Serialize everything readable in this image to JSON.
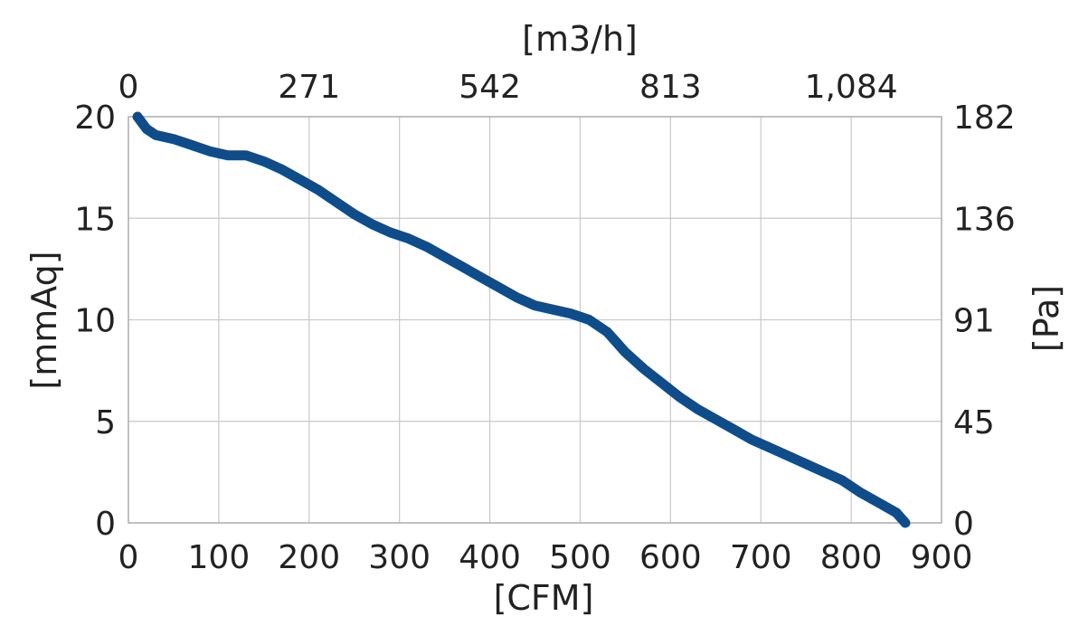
{
  "chart_data": {
    "type": "line",
    "xlabel": "[CFM]",
    "x2label": "[m3/h]",
    "ylabel": "[mmAq]",
    "y2label": "[Pa]",
    "xlim": [
      0,
      900
    ],
    "ylim": [
      0,
      20
    ],
    "grid": true,
    "line_color": "#0f4c8a",
    "x_ticks": [
      "0",
      "100",
      "200",
      "300",
      "400",
      "500",
      "600",
      "700",
      "800",
      "900"
    ],
    "y_ticks": [
      "0",
      "5",
      "10",
      "15",
      "20"
    ],
    "x2_ticks": [
      {
        "label": "0",
        "at_cfm": 0
      },
      {
        "label": "271",
        "at_cfm": 200
      },
      {
        "label": "542",
        "at_cfm": 400
      },
      {
        "label": "813",
        "at_cfm": 600
      },
      {
        "label": "1,084",
        "at_cfm": 800
      }
    ],
    "y2_ticks": [
      {
        "label": "0",
        "at_mmaq": 0
      },
      {
        "label": "45",
        "at_mmaq": 5
      },
      {
        "label": "91",
        "at_mmaq": 10
      },
      {
        "label": "136",
        "at_mmaq": 15
      },
      {
        "label": "182",
        "at_mmaq": 20
      }
    ],
    "series": [
      {
        "x": [
          10,
          20,
          30,
          50,
          70,
          90,
          110,
          130,
          150,
          170,
          190,
          210,
          230,
          250,
          270,
          290,
          310,
          330,
          350,
          370,
          390,
          410,
          430,
          450,
          470,
          490,
          510,
          530,
          540,
          550,
          570,
          590,
          610,
          630,
          650,
          670,
          690,
          710,
          730,
          750,
          770,
          790,
          810,
          830,
          850,
          860
        ],
        "y": [
          20,
          19.4,
          19.1,
          18.9,
          18.6,
          18.3,
          18.1,
          18.1,
          17.8,
          17.4,
          16.9,
          16.4,
          15.8,
          15.2,
          14.7,
          14.3,
          14.0,
          13.6,
          13.1,
          12.6,
          12.1,
          11.6,
          11.1,
          10.7,
          10.5,
          10.3,
          10.0,
          9.4,
          8.9,
          8.4,
          7.6,
          6.9,
          6.2,
          5.6,
          5.1,
          4.6,
          4.1,
          3.7,
          3.3,
          2.9,
          2.5,
          2.1,
          1.5,
          1.0,
          0.5,
          0
        ]
      }
    ]
  }
}
